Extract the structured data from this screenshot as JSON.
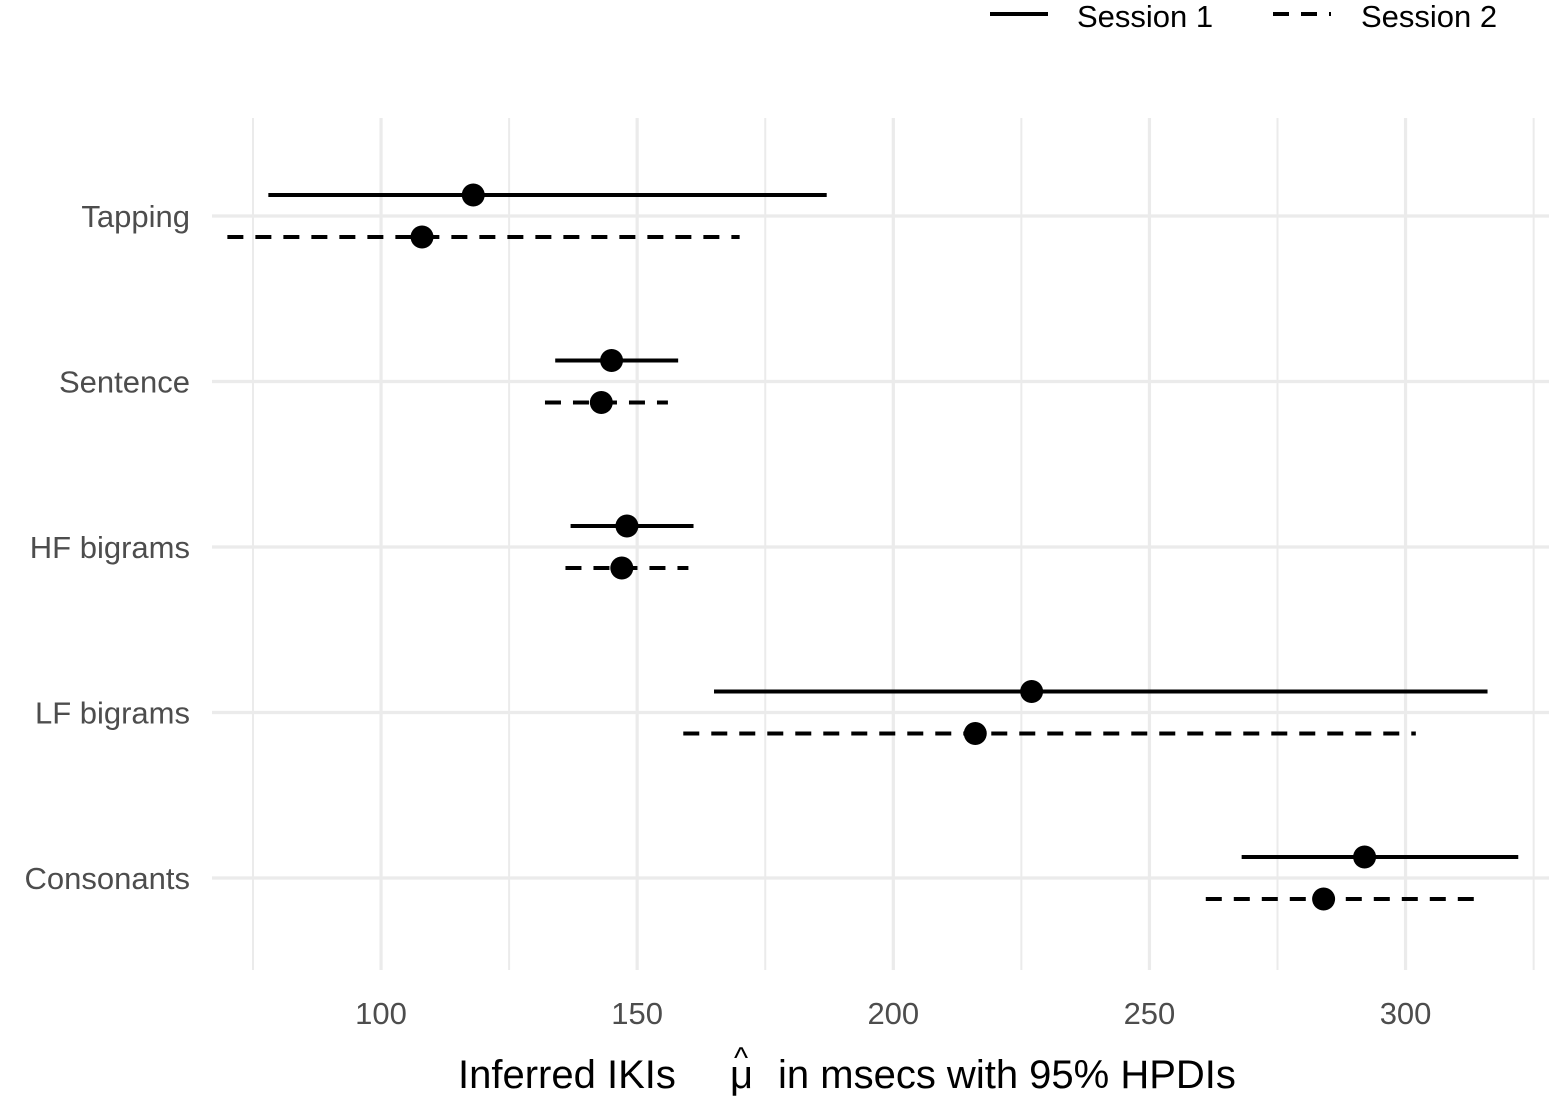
{
  "chart_data": {
    "type": "dot-interval",
    "categories": [
      "Tapping",
      "Sentence",
      "HF bigrams",
      "LF bigrams",
      "Consonants"
    ],
    "series": [
      {
        "name": "Session 1",
        "linetype": "solid",
        "estimate": [
          118,
          145,
          148,
          227,
          292
        ],
        "lower": [
          78,
          134,
          137,
          165,
          268
        ],
        "upper": [
          187,
          158,
          161,
          316,
          322
        ]
      },
      {
        "name": "Session 2",
        "linetype": "dashed",
        "estimate": [
          108,
          143,
          147,
          216,
          284
        ],
        "lower": [
          70,
          132,
          136,
          159,
          261
        ],
        "upper": [
          170,
          156,
          160,
          302,
          314
        ]
      }
    ],
    "xlabel_before": "Inferred IKIs",
    "xlabel_symbol": "μ",
    "xlabel_hat": "^",
    "xlabel_after": "in msecs with 95% HPDIs",
    "xticks": [
      100,
      150,
      200,
      250,
      300
    ],
    "xlim": [
      67,
      328
    ],
    "grid": true,
    "legend_position": "top-right",
    "colors": {
      "marks": "#000000",
      "grid": "#ebebeb",
      "tick_text": "#4d4d4d"
    }
  }
}
